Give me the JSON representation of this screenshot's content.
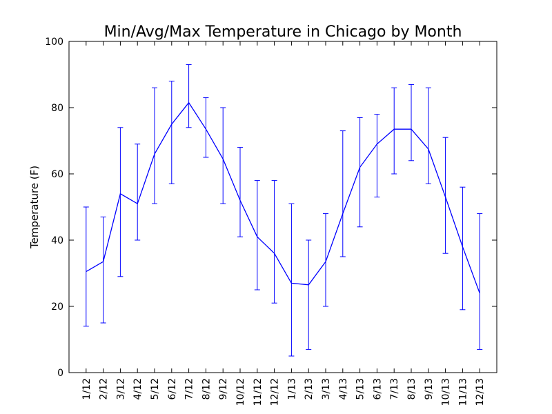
{
  "figure": {
    "background": "#ffffff",
    "axis_color": "#000000",
    "data_color": "#0000ff"
  },
  "chart_data": {
    "type": "line",
    "title": "Min/Avg/Max Temperature in Chicago by Month",
    "xlabel": "",
    "ylabel": "Temperature (F)",
    "ylim": [
      0,
      100
    ],
    "yticks": [
      0,
      20,
      40,
      60,
      80,
      100
    ],
    "grid": false,
    "legend": "none",
    "marks": "blue average line with vertical min-max error bars and end caps at each month",
    "categories": [
      "1/12",
      "2/12",
      "3/12",
      "4/12",
      "5/12",
      "6/12",
      "7/12",
      "8/12",
      "9/12",
      "10/12",
      "11/12",
      "12/12",
      "1/13",
      "2/13",
      "3/13",
      "4/13",
      "5/13",
      "6/13",
      "7/13",
      "8/13",
      "9/13",
      "10/13",
      "11/13",
      "12/13"
    ],
    "series": [
      {
        "name": "avg",
        "values": [
          30.5,
          33.5,
          54,
          51,
          66,
          75,
          81.5,
          73.5,
          64.5,
          52,
          41,
          36,
          27,
          26.5,
          33.5,
          48,
          62,
          69,
          73.5,
          73.5,
          67.5,
          53,
          38,
          24
        ]
      },
      {
        "name": "min",
        "values": [
          14,
          15,
          29,
          40,
          51,
          57,
          74,
          65,
          51,
          41,
          25,
          21,
          5,
          7,
          20,
          35,
          44,
          53,
          60,
          64,
          57,
          36,
          19,
          7
        ]
      },
      {
        "name": "max",
        "values": [
          50,
          47,
          74,
          69,
          86,
          88,
          93,
          83,
          80,
          68,
          58,
          58,
          51,
          40,
          48,
          73,
          77,
          78,
          86,
          87,
          86,
          71,
          56,
          48
        ]
      }
    ]
  }
}
